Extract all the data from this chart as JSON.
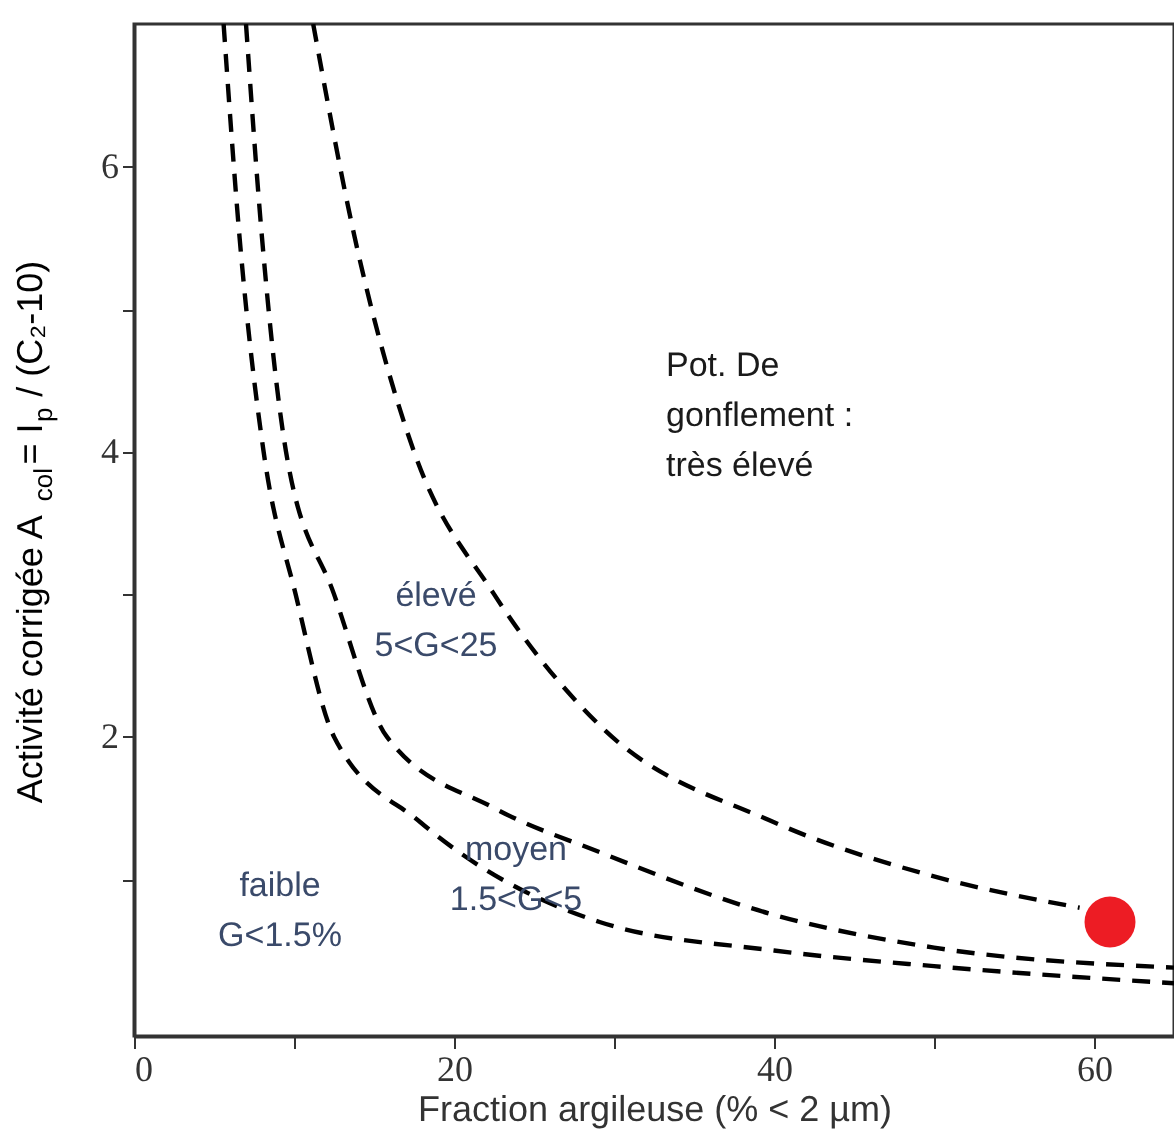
{
  "chart_data": {
    "type": "line",
    "xlabel": "Fraction argileuse (% < 2 µm)",
    "ylabel": "Activité corrigée A$_{col}$= I$_{p}$ / (C₂-10)",
    "xlim": [
      0,
      65
    ],
    "ylim": [
      -0.1,
      7
    ],
    "xticks": [
      0,
      {
        "value": 10,
        "label": null
      },
      20,
      {
        "value": 30,
        "label": null
      },
      40,
      {
        "value": 50,
        "label": null
      },
      60
    ],
    "yticks": [
      {
        "value": 1,
        "label": null
      },
      2,
      {
        "value": 3,
        "label": null
      },
      4,
      {
        "value": 5,
        "label": null
      },
      6
    ],
    "grid": false,
    "series": [
      {
        "line_style": "dashed",
        "color": "#000000",
        "x": [
          5.6,
          6.6,
          8.1,
          10.1,
          12.5,
          17.9,
          29.1,
          40,
          50,
          65
        ],
        "values": [
          7,
          5.5,
          4.0,
          3.0,
          2.0,
          1.4,
          0.7,
          0.5,
          0.39,
          0.27
        ]
      },
      {
        "line_style": "dashed",
        "color": "#000000",
        "x": [
          7.0,
          8.0,
          9.5,
          12.5,
          15.8,
          22.5,
          29.1,
          40,
          50,
          65
        ],
        "values": [
          7,
          5.5,
          4.0,
          3.0,
          2.0,
          1.5,
          1.19,
          0.75,
          0.52,
          0.38
        ]
      },
      {
        "line_style": "dashed",
        "color": "#000000",
        "x": [
          11.2,
          13.8,
          17.5,
          22.5,
          29.1,
          40,
          50,
          59.1
        ],
        "values": [
          7,
          5.5,
          4.0,
          3.0,
          2.08,
          1.4,
          1.02,
          0.8
        ]
      },
      {
        "type": "scatter",
        "marker": "circle",
        "color": "#ed1c24",
        "x": [
          61
        ],
        "values": [
          0.7
        ]
      }
    ],
    "annotations": [
      "Pot. De\ngonflement :\ntrès élevé",
      "élevé\n5<G<25",
      "moyen\n1.5<G<5",
      "faible\nG<1.5%"
    ]
  }
}
